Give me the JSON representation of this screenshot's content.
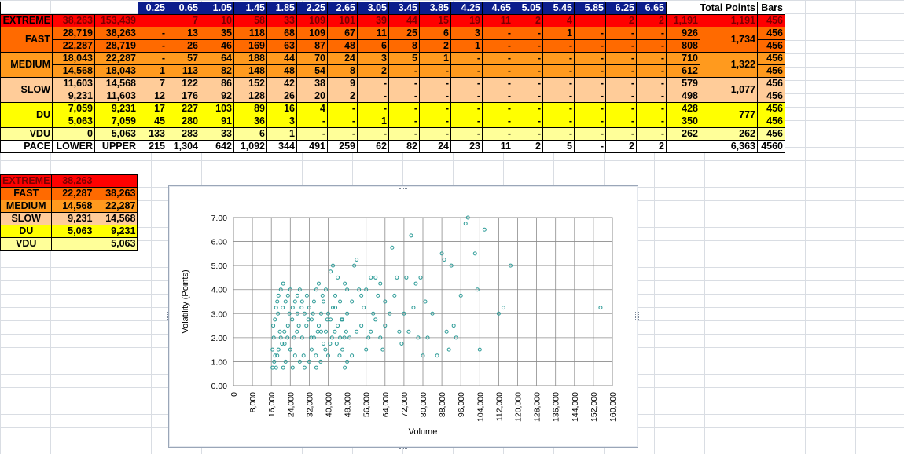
{
  "header": {
    "bins": [
      "0.25",
      "0.65",
      "1.05",
      "1.45",
      "1.85",
      "2.25",
      "2.65",
      "3.05",
      "3.45",
      "3.85",
      "4.25",
      "4.65",
      "5.05",
      "5.45",
      "5.85",
      "6.25",
      "6.65"
    ],
    "total_points": "Total Points",
    "bars": "Bars"
  },
  "rows": {
    "extreme": {
      "label": "EXTREME",
      "lower": "38,263",
      "upper": "153,439",
      "vals": [
        "",
        "7",
        "10",
        "58",
        "33",
        "109",
        "101",
        "39",
        "44",
        "15",
        "19",
        "11",
        "2",
        "4",
        "",
        "2",
        "2"
      ],
      "tp": "1,191",
      "total": "1,191",
      "bars": "456"
    },
    "fast": {
      "label": "FAST",
      "a": {
        "lower": "28,719",
        "upper": "38,263",
        "vals": [
          "-",
          "13",
          "35",
          "118",
          "68",
          "109",
          "67",
          "11",
          "25",
          "6",
          "3",
          "-",
          "-",
          "1",
          "-",
          "-",
          "-"
        ],
        "tp": "926",
        "bars": "456"
      },
      "b": {
        "lower": "22,287",
        "upper": "28,719",
        "vals": [
          "-",
          "26",
          "46",
          "169",
          "63",
          "87",
          "48",
          "6",
          "8",
          "2",
          "1",
          "-",
          "-",
          "-",
          "-",
          "-",
          "-"
        ],
        "tp": "808",
        "bars": "456"
      },
      "total": "1,734"
    },
    "medium": {
      "label": "MEDIUM",
      "a": {
        "lower": "18,043",
        "upper": "22,287",
        "vals": [
          "-",
          "57",
          "64",
          "188",
          "44",
          "70",
          "24",
          "3",
          "5",
          "1",
          "-",
          "-",
          "-",
          "-",
          "-",
          "-",
          "-"
        ],
        "tp": "710",
        "bars": "456"
      },
      "b": {
        "lower": "14,568",
        "upper": "18,043",
        "vals": [
          "1",
          "113",
          "82",
          "148",
          "48",
          "54",
          "8",
          "2",
          "-",
          "-",
          "-",
          "-",
          "-",
          "-",
          "-",
          "-",
          "-"
        ],
        "tp": "612",
        "bars": "456"
      },
      "total": "1,322"
    },
    "slow": {
      "label": "SLOW",
      "a": {
        "lower": "11,603",
        "upper": "14,568",
        "vals": [
          "7",
          "122",
          "86",
          "152",
          "42",
          "38",
          "9",
          "-",
          "-",
          "-",
          "-",
          "-",
          "-",
          "-",
          "-",
          "-",
          "-"
        ],
        "tp": "579",
        "bars": "456"
      },
      "b": {
        "lower": "9,231",
        "upper": "11,603",
        "vals": [
          "12",
          "176",
          "92",
          "128",
          "26",
          "20",
          "2",
          "-",
          "-",
          "-",
          "-",
          "-",
          "-",
          "-",
          "-",
          "-",
          "-"
        ],
        "tp": "498",
        "bars": "456"
      },
      "total": "1,077"
    },
    "du": {
      "label": "DU",
      "a": {
        "lower": "7,059",
        "upper": "9,231",
        "vals": [
          "17",
          "227",
          "103",
          "89",
          "16",
          "4",
          "-",
          "-",
          "-",
          "-",
          "-",
          "-",
          "-",
          "-",
          "-",
          "-",
          "-"
        ],
        "tp": "428",
        "bars": "456"
      },
      "b": {
        "lower": "5,063",
        "upper": "7,059",
        "vals": [
          "45",
          "280",
          "91",
          "36",
          "3",
          "-",
          "-",
          "1",
          "-",
          "-",
          "-",
          "-",
          "-",
          "-",
          "-",
          "-",
          "-"
        ],
        "tp": "350",
        "bars": "456"
      },
      "total": "777"
    },
    "vdu": {
      "label": "VDU",
      "lower": "0",
      "upper": "5,063",
      "vals": [
        "133",
        "283",
        "33",
        "6",
        "1",
        "-",
        "-",
        "-",
        "-",
        "-",
        "-",
        "-",
        "-",
        "-",
        "-",
        "-",
        "-"
      ],
      "tp": "262",
      "total": "262",
      "bars": "456"
    },
    "pace": {
      "label": "PACE",
      "lower": "LOWER",
      "upper": "UPPER",
      "vals": [
        "215",
        "1,304",
        "642",
        "1,092",
        "344",
        "491",
        "259",
        "62",
        "82",
        "24",
        "23",
        "11",
        "2",
        "5",
        "-",
        "2",
        "2"
      ],
      "tp": "",
      "total": "6,363",
      "bars": "4560"
    }
  },
  "thresholds": [
    {
      "label": "EXTREME",
      "low": "38,263",
      "high": ""
    },
    {
      "label": "FAST",
      "low": "22,287",
      "high": "38,263"
    },
    {
      "label": "MEDIUM",
      "low": "14,568",
      "high": "22,287"
    },
    {
      "label": "SLOW",
      "low": "9,231",
      "high": "14,568"
    },
    {
      "label": "DU",
      "low": "5,063",
      "high": "9,231"
    },
    {
      "label": "VDU",
      "low": "",
      "high": "5,063"
    }
  ],
  "colors": {
    "extreme": "#ff0000",
    "fast": "#ff6a00",
    "medium": "#ff9a1e",
    "slow": "#ffcc99",
    "du": "#ffff00",
    "vdu": "#ffff99",
    "header": "#0b1d8c",
    "marker": "#2a9a96"
  },
  "chart_data": {
    "type": "scatter",
    "title": "",
    "xlabel": "Volume",
    "ylabel": "Volatility (Points)",
    "xlim": [
      0,
      160000
    ],
    "ylim": [
      0,
      7
    ],
    "x_ticks": [
      "0",
      "8,000",
      "16,000",
      "24,000",
      "32,000",
      "40,000",
      "48,000",
      "56,000",
      "64,000",
      "72,000",
      "80,000",
      "88,000",
      "96,000",
      "104,000",
      "112,000",
      "120,000",
      "128,000",
      "136,000",
      "144,000",
      "152,000",
      "160,000"
    ],
    "y_ticks": [
      "0.00",
      "1.00",
      "2.00",
      "3.00",
      "4.00",
      "5.00",
      "6.00",
      "7.00"
    ],
    "grid": true,
    "series": [
      {
        "points": [
          [
            16500,
            0.75
          ],
          [
            17200,
            1.0
          ],
          [
            18000,
            0.75
          ],
          [
            18500,
            1.25
          ],
          [
            19000,
            1.5
          ],
          [
            20000,
            2.0
          ],
          [
            20500,
            1.75
          ],
          [
            21000,
            0.75
          ],
          [
            21500,
            2.25
          ],
          [
            22000,
            1.0
          ],
          [
            23000,
            2.5
          ],
          [
            24000,
            1.5
          ],
          [
            25000,
            0.75
          ],
          [
            26000,
            1.25
          ],
          [
            27000,
            3.0
          ],
          [
            28000,
            1.0
          ],
          [
            29000,
            2.0
          ],
          [
            30000,
            0.75
          ],
          [
            16500,
            1.5
          ],
          [
            17000,
            2.0
          ],
          [
            17500,
            2.75
          ],
          [
            18000,
            3.25
          ],
          [
            18500,
            3.5
          ],
          [
            19000,
            3.75
          ],
          [
            20000,
            4.0
          ],
          [
            21000,
            4.25
          ],
          [
            22000,
            3.5
          ],
          [
            23000,
            3.75
          ],
          [
            24000,
            4.0
          ],
          [
            25000,
            3.25
          ],
          [
            26000,
            3.5
          ],
          [
            27000,
            3.75
          ],
          [
            28000,
            4.0
          ],
          [
            29000,
            3.5
          ],
          [
            30000,
            3.0
          ],
          [
            31000,
            3.75
          ],
          [
            32000,
            1.0
          ],
          [
            33000,
            1.5
          ],
          [
            34000,
            2.0
          ],
          [
            35000,
            0.75
          ],
          [
            36000,
            2.5
          ],
          [
            37000,
            3.0
          ],
          [
            38000,
            3.5
          ],
          [
            39000,
            4.0
          ],
          [
            40000,
            1.25
          ],
          [
            41000,
            2.75
          ],
          [
            42000,
            3.25
          ],
          [
            43000,
            3.75
          ],
          [
            44000,
            4.5
          ],
          [
            45000,
            2.0
          ],
          [
            46000,
            1.5
          ],
          [
            47000,
            0.75
          ],
          [
            48000,
            4.0
          ],
          [
            32000,
            3.25
          ],
          [
            33000,
            2.75
          ],
          [
            34000,
            3.5
          ],
          [
            35000,
            4.0
          ],
          [
            36000,
            4.25
          ],
          [
            37000,
            2.25
          ],
          [
            38000,
            1.75
          ],
          [
            39000,
            2.25
          ],
          [
            40000,
            3.0
          ],
          [
            41000,
            4.75
          ],
          [
            42000,
            5.0
          ],
          [
            43000,
            3.25
          ],
          [
            44000,
            2.5
          ],
          [
            45000,
            3.5
          ],
          [
            46000,
            2.75
          ],
          [
            47000,
            4.25
          ],
          [
            48000,
            3.0
          ],
          [
            49000,
            2.0
          ],
          [
            50000,
            3.5
          ],
          [
            51000,
            5.0
          ],
          [
            52000,
            5.25
          ],
          [
            53000,
            4.0
          ],
          [
            54000,
            2.5
          ],
          [
            55000,
            3.25
          ],
          [
            56000,
            1.5
          ],
          [
            57000,
            2.0
          ],
          [
            58000,
            4.5
          ],
          [
            59000,
            3.0
          ],
          [
            60000,
            2.75
          ],
          [
            61000,
            3.75
          ],
          [
            62000,
            4.25
          ],
          [
            63000,
            1.5
          ],
          [
            64000,
            3.5
          ],
          [
            48000,
            1.0
          ],
          [
            50000,
            1.25
          ],
          [
            52000,
            2.25
          ],
          [
            54000,
            3.75
          ],
          [
            56000,
            4.0
          ],
          [
            58000,
            2.25
          ],
          [
            60000,
            4.5
          ],
          [
            62000,
            2.0
          ],
          [
            64000,
            2.5
          ],
          [
            66000,
            3.0
          ],
          [
            67000,
            5.75
          ],
          [
            68000,
            3.75
          ],
          [
            69000,
            4.5
          ],
          [
            70000,
            2.25
          ],
          [
            71000,
            1.75
          ],
          [
            72000,
            3.0
          ],
          [
            73000,
            4.5
          ],
          [
            74000,
            2.25
          ],
          [
            75000,
            6.25
          ],
          [
            76000,
            3.25
          ],
          [
            77000,
            4.25
          ],
          [
            78000,
            2.0
          ],
          [
            79000,
            4.5
          ],
          [
            80000,
            1.25
          ],
          [
            81000,
            3.5
          ],
          [
            82000,
            2.0
          ],
          [
            84000,
            3.0
          ],
          [
            86000,
            1.25
          ],
          [
            88000,
            5.5
          ],
          [
            89000,
            5.25
          ],
          [
            90000,
            2.25
          ],
          [
            91000,
            1.5
          ],
          [
            92000,
            5.0
          ],
          [
            93000,
            2.5
          ],
          [
            94000,
            2.0
          ],
          [
            96000,
            3.75
          ],
          [
            98000,
            6.75
          ],
          [
            99000,
            7.0
          ],
          [
            102000,
            5.5
          ],
          [
            103000,
            4.0
          ],
          [
            104000,
            1.5
          ],
          [
            106000,
            6.5
          ],
          [
            112000,
            3.0
          ],
          [
            114000,
            3.25
          ],
          [
            117000,
            5.0
          ],
          [
            155000,
            3.25
          ],
          [
            16800,
            2.5
          ],
          [
            18800,
            3.0
          ],
          [
            20800,
            3.25
          ],
          [
            22800,
            2.0
          ],
          [
            24800,
            2.75
          ],
          [
            26800,
            2.25
          ],
          [
            28800,
            3.25
          ],
          [
            30800,
            2.5
          ],
          [
            32800,
            2.0
          ],
          [
            34800,
            1.25
          ],
          [
            36800,
            1.0
          ],
          [
            38800,
            1.5
          ],
          [
            40800,
            1.75
          ],
          [
            42800,
            2.25
          ],
          [
            44800,
            1.25
          ],
          [
            46800,
            2.0
          ],
          [
            17600,
            1.25
          ],
          [
            19600,
            2.25
          ],
          [
            21600,
            1.75
          ],
          [
            23600,
            3.0
          ],
          [
            25600,
            2.0
          ],
          [
            27600,
            2.5
          ],
          [
            29600,
            1.25
          ],
          [
            31600,
            2.75
          ],
          [
            33600,
            3.0
          ],
          [
            35600,
            2.25
          ],
          [
            37600,
            3.75
          ],
          [
            39600,
            2.75
          ],
          [
            41600,
            2.0
          ],
          [
            43600,
            1.75
          ],
          [
            45600,
            2.75
          ],
          [
            47600,
            2.25
          ]
        ]
      }
    ]
  }
}
